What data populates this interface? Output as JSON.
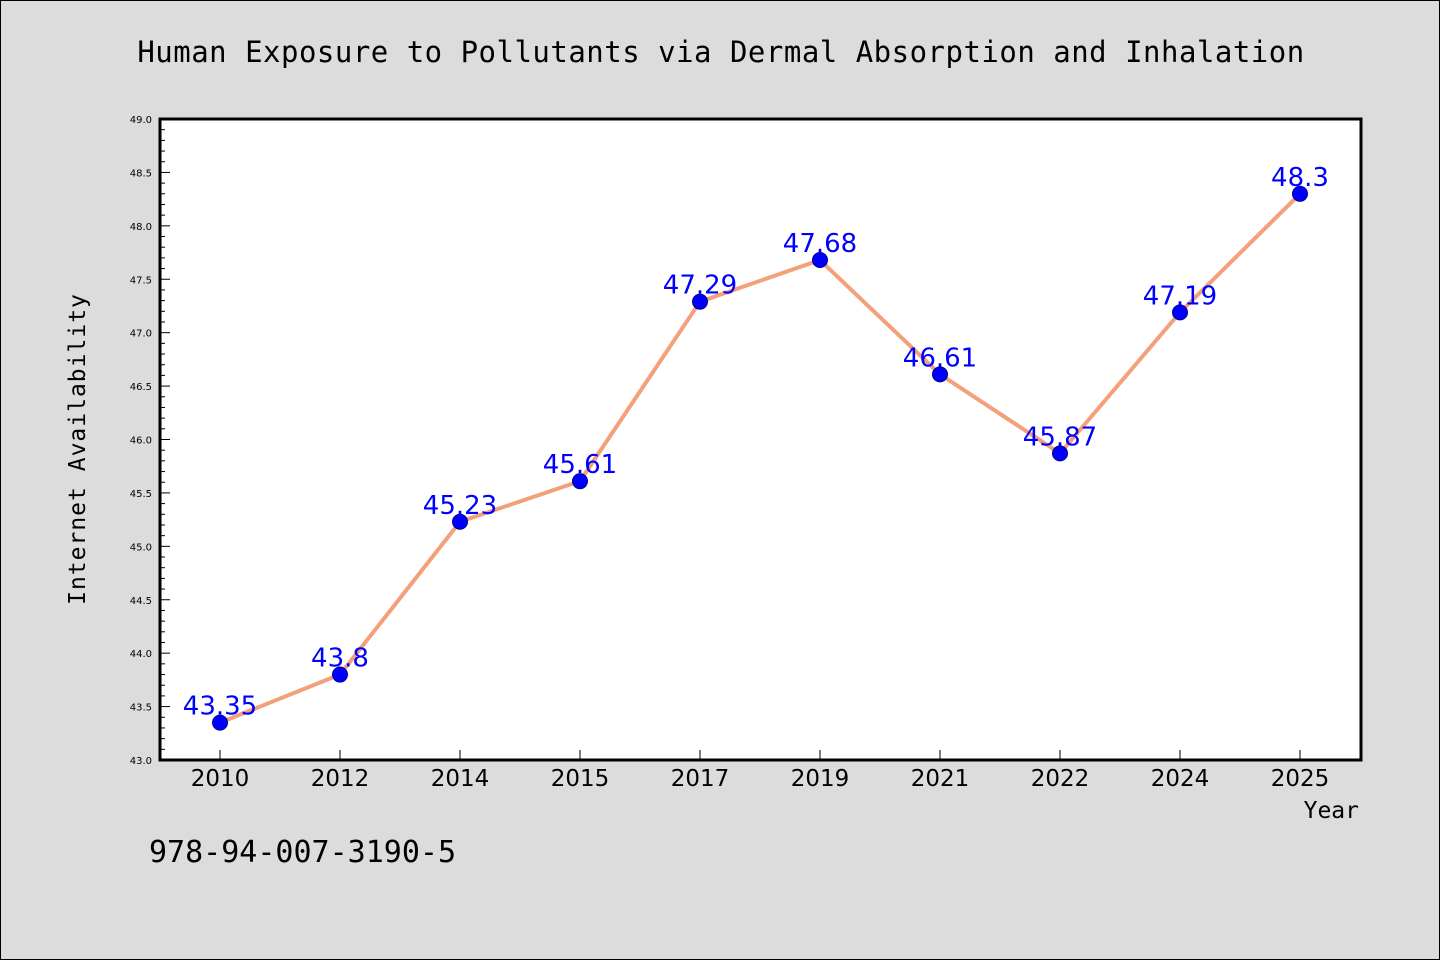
{
  "chart_data": {
    "type": "line",
    "title": "Human Exposure to Pollutants via Dermal Absorption and Inhalation",
    "xlabel": "Year",
    "ylabel": "Internet Availability",
    "categories": [
      "2010",
      "2012",
      "2014",
      "2015",
      "2017",
      "2019",
      "2021",
      "2022",
      "2024",
      "2025"
    ],
    "series": [
      {
        "values": [
          43.35,
          43.8,
          45.23,
          45.61,
          47.29,
          47.68,
          46.61,
          45.87,
          47.19,
          48.3
        ],
        "data_labels": [
          "43.35",
          "43.8",
          "45.23",
          "45.61",
          "47.29",
          "47.68",
          "46.61",
          "45.87",
          "47.19",
          "48.3"
        ],
        "line_color": "#f4a07a",
        "marker_color": "#0000ff"
      }
    ],
    "ylim": [
      43.0,
      49.0
    ],
    "yticks": [
      "43.0",
      "43.5",
      "44.0",
      "44.5",
      "45.0",
      "45.5",
      "46.0",
      "46.5",
      "47.0",
      "47.5",
      "48.0",
      "48.5",
      "49.0"
    ],
    "grid": false,
    "legend": "none"
  },
  "footer": {
    "code": "978-94-007-3190-5"
  },
  "colors": {
    "figure_background": "#dcdcdc",
    "plot_background": "#ffffff",
    "label_color": "#0000ff"
  }
}
